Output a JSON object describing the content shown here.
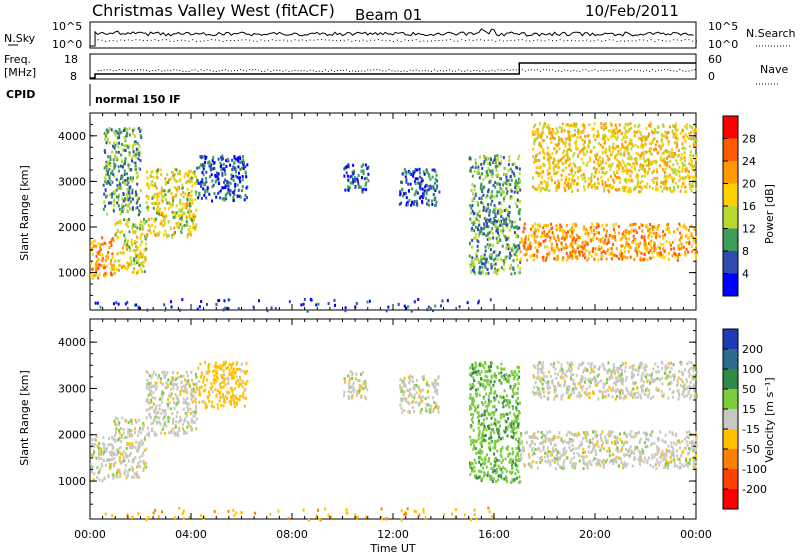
{
  "chart_data": [
    {
      "type": "heatmap",
      "title": "Christmas Valley West (fitACF)",
      "beam": "Beam 01",
      "date": "10/Feb/2011",
      "top_panel": {
        "left_labels": [
          "N.Sky"
        ],
        "right_labels": [
          "N.Search"
        ],
        "ticks_left": [
          "10^5",
          "10^0"
        ],
        "ticks_right": [
          "10^5",
          "10^0"
        ]
      },
      "freq_panel": {
        "left_labels": [
          "Freq.",
          "[MHz]"
        ],
        "right_label": "Nave",
        "ticks_left": [
          "18",
          "8"
        ],
        "ticks_right": [
          "60",
          "0"
        ]
      },
      "cpid": {
        "label": "CPID",
        "value": "normal 150 IF"
      },
      "power_panel": {
        "ylabel": "Slant Range [km]",
        "yticks": [
          "4000",
          "3000",
          "2000",
          "1000"
        ],
        "colorbar_label": "Power [dB]",
        "colorbar_ticks": [
          "28",
          "24",
          "20",
          "16",
          "12",
          "8",
          "4"
        ],
        "colorbar_colors": [
          "#ff0000",
          "#ff5a00",
          "#ff9a00",
          "#ffd000",
          "#b8d830",
          "#3c9c5c",
          "#2c4cb0",
          "#0000ff"
        ]
      },
      "velocity_panel": {
        "ylabel": "Slant Range [km]",
        "yticks": [
          "4000",
          "3000",
          "2000",
          "1000"
        ],
        "colorbar_label": "Velocity [m s⁻¹]",
        "colorbar_ticks": [
          "200",
          "100",
          "50",
          "15",
          "-15",
          "-50",
          "-100",
          "-200"
        ],
        "colorbar_colors": [
          "#1e3cb4",
          "#2c6c8c",
          "#2e8a44",
          "#7ccc3c",
          "#c8c8c0",
          "#ffc000",
          "#ff8000",
          "#ff4000",
          "#ff0000"
        ]
      },
      "xlabel": "Time UT",
      "xticks": [
        "00:00",
        "04:00",
        "08:00",
        "12:00",
        "16:00",
        "20:00",
        "00:00"
      ],
      "x_hours": [
        0,
        4,
        8,
        12,
        16,
        20,
        24
      ],
      "ylim": [
        180,
        4500
      ],
      "series": [
        {
          "kind": "power",
          "blobs": [
            {
              "t": [
                0.0,
                0.9
              ],
              "r": [
                900,
                1800
              ],
              "v": 24
            },
            {
              "t": [
                0.9,
                2.2
              ],
              "r": [
                1000,
                2200
              ],
              "v": 18
            },
            {
              "t": [
                2.2,
                4.2
              ],
              "r": [
                1800,
                3300
              ],
              "v": 18
            },
            {
              "t": [
                4.2,
                6.2
              ],
              "r": [
                2600,
                3600
              ],
              "v": 8
            },
            {
              "t": [
                0.5,
                2.0
              ],
              "r": [
                2300,
                4200
              ],
              "v": 12
            },
            {
              "t": [
                10.0,
                11.0
              ],
              "r": [
                2800,
                3400
              ],
              "v": 8
            },
            {
              "t": [
                12.2,
                13.8
              ],
              "r": [
                2500,
                3300
              ],
              "v": 8
            },
            {
              "t": [
                15.0,
                17.0
              ],
              "r": [
                1000,
                3600
              ],
              "v": 12
            },
            {
              "t": [
                17.0,
                24.0
              ],
              "r": [
                1300,
                2100
              ],
              "v": 24
            },
            {
              "t": [
                17.5,
                24.0
              ],
              "r": [
                2800,
                4300
              ],
              "v": 20
            },
            {
              "t": [
                0.0,
                16.0
              ],
              "r": [
                180,
                450
              ],
              "v": 6
            }
          ]
        },
        {
          "kind": "velocity",
          "blobs": [
            {
              "t": [
                0.0,
                0.9
              ],
              "r": [
                1000,
                2000
              ],
              "v": 0
            },
            {
              "t": [
                0.9,
                2.2
              ],
              "r": [
                1100,
                2400
              ],
              "v": 0
            },
            {
              "t": [
                2.2,
                4.2
              ],
              "r": [
                2000,
                3400
              ],
              "v": 0
            },
            {
              "t": [
                4.2,
                6.2
              ],
              "r": [
                2600,
                3600
              ],
              "v": -30
            },
            {
              "t": [
                10.0,
                11.0
              ],
              "r": [
                2800,
                3400
              ],
              "v": 0
            },
            {
              "t": [
                12.2,
                13.8
              ],
              "r": [
                2500,
                3300
              ],
              "v": 0
            },
            {
              "t": [
                15.0,
                17.0
              ],
              "r": [
                1000,
                3600
              ],
              "v": 40
            },
            {
              "t": [
                17.0,
                24.0
              ],
              "r": [
                1300,
                2100
              ],
              "v": 0
            },
            {
              "t": [
                17.5,
                24.0
              ],
              "r": [
                2800,
                3600
              ],
              "v": 0
            },
            {
              "t": [
                0.0,
                16.0
              ],
              "r": [
                180,
                450
              ],
              "v": -40
            }
          ]
        }
      ]
    }
  ]
}
